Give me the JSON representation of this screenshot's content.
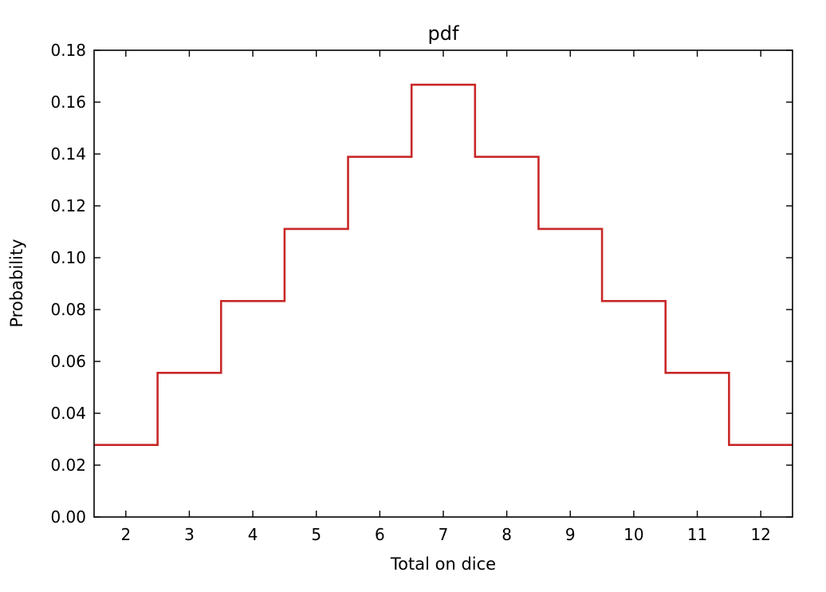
{
  "chart_data": {
    "type": "line",
    "drawstyle": "steps-mid",
    "title": "pdf",
    "xlabel": "Total on dice",
    "ylabel": "Probability",
    "x": [
      2,
      3,
      4,
      5,
      6,
      7,
      8,
      9,
      10,
      11,
      12
    ],
    "series": [
      {
        "values": [
          0.0278,
          0.0556,
          0.0833,
          0.1111,
          0.1389,
          0.1667,
          0.1389,
          0.1111,
          0.0833,
          0.0556,
          0.0278
        ]
      }
    ],
    "xlim": [
      1.5,
      12.5
    ],
    "ylim": [
      0.0,
      0.18
    ],
    "xticks": [
      "2",
      "3",
      "4",
      "5",
      "6",
      "7",
      "8",
      "9",
      "10",
      "11",
      "12"
    ],
    "yticks": [
      "0.00",
      "0.02",
      "0.04",
      "0.06",
      "0.08",
      "0.10",
      "0.12",
      "0.14",
      "0.16",
      "0.18"
    ],
    "grid": false,
    "line_color": "#c82828"
  }
}
